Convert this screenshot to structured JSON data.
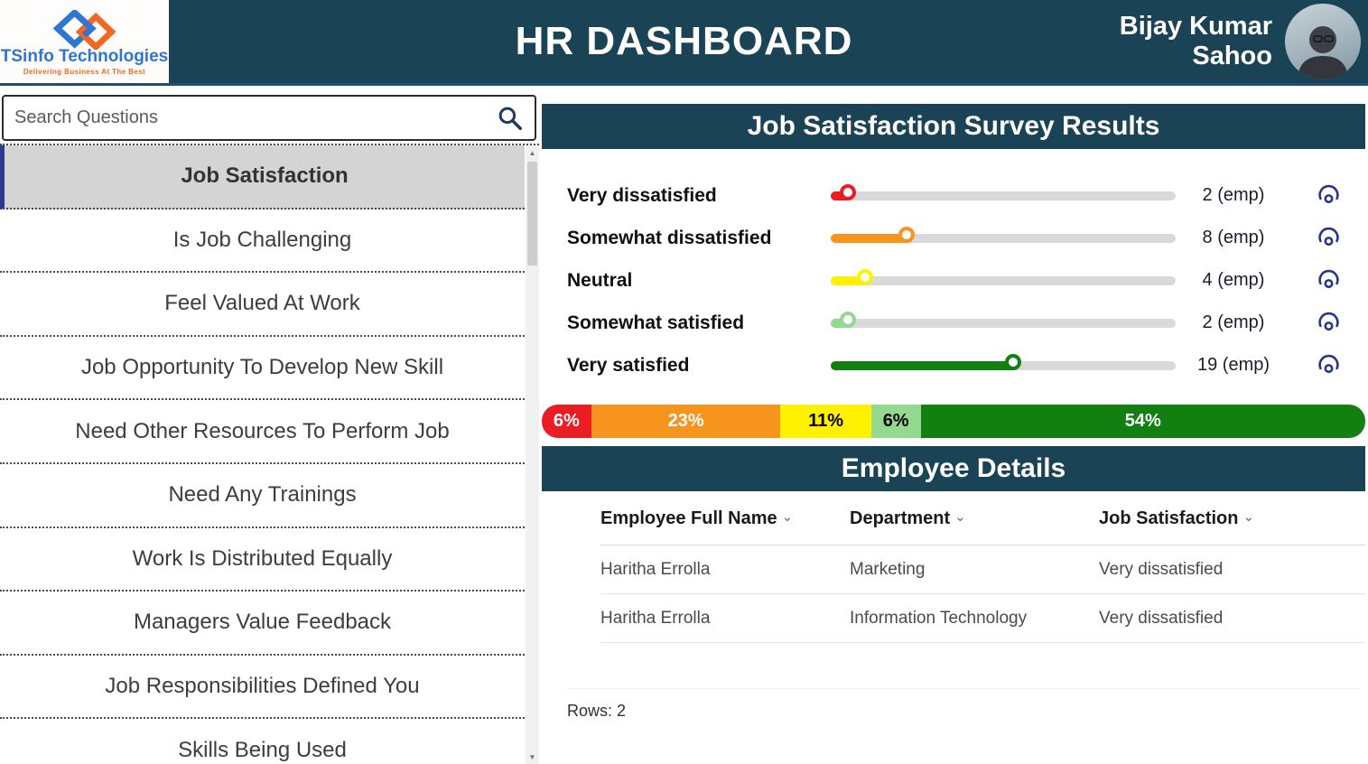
{
  "header": {
    "logo": {
      "company": "TSinfo Technologies",
      "tagline": "Delivering Business At The Best"
    },
    "title": "HR DASHBOARD",
    "user_name": "Bijay Kumar Sahoo"
  },
  "sidebar": {
    "search_placeholder": "Search Questions",
    "items": [
      {
        "label": "Job Satisfaction",
        "selected": true
      },
      {
        "label": "Is Job Challenging",
        "selected": false
      },
      {
        "label": "Feel Valued At Work",
        "selected": false
      },
      {
        "label": "Job Opportunity To Develop New Skill",
        "selected": false
      },
      {
        "label": "Need Other Resources To Perform Job",
        "selected": false
      },
      {
        "label": "Need Any Trainings",
        "selected": false
      },
      {
        "label": "Work Is Distributed Equally",
        "selected": false
      },
      {
        "label": "Managers Value Feedback",
        "selected": false
      },
      {
        "label": "Job Responsibilities Defined You",
        "selected": false
      },
      {
        "label": "Skills Being Used",
        "selected": false
      }
    ]
  },
  "survey": {
    "title": "Job Satisfaction Survey Results",
    "rows": [
      {
        "label": "Very dissatisfied",
        "value_label": "2 (emp)",
        "employees": 2,
        "percent": 6,
        "color": "#ec1c24"
      },
      {
        "label": "Somewhat dissatisfied",
        "value_label": "8 (emp)",
        "employees": 8,
        "percent": 23,
        "color": "#f7941d"
      },
      {
        "label": "Neutral",
        "value_label": "4 (emp)",
        "employees": 4,
        "percent": 11,
        "color": "#fff100"
      },
      {
        "label": "Somewhat satisfied",
        "value_label": "2 (emp)",
        "employees": 2,
        "percent": 6,
        "color": "#93d990"
      },
      {
        "label": "Very satisfied",
        "value_label": "19 (emp)",
        "employees": 19,
        "percent": 54,
        "color": "#118011"
      }
    ]
  },
  "distribution_bar": {
    "segments": [
      {
        "label": "6%",
        "percent": 6,
        "color": "#ec1c24",
        "text_color": "#ffffff"
      },
      {
        "label": "23%",
        "percent": 23,
        "color": "#f7941d",
        "text_color": "#ffffff"
      },
      {
        "label": "11%",
        "percent": 11,
        "color": "#fff100",
        "text_color": "#000000"
      },
      {
        "label": "6%",
        "percent": 6,
        "color": "#93d990",
        "text_color": "#000000"
      },
      {
        "label": "54%",
        "percent": 54,
        "color": "#118011",
        "text_color": "#ffffff"
      }
    ]
  },
  "employee_details": {
    "title": "Employee Details",
    "columns": [
      "Employee Full Name",
      "Department",
      "Job Satisfaction"
    ],
    "rows": [
      [
        "Haritha Errolla",
        "Marketing",
        "Very dissatisfied"
      ],
      [
        "Haritha Errolla",
        "Information Technology",
        "Very dissatisfied"
      ]
    ],
    "rows_label": "Rows: 2"
  },
  "icons": {
    "sort_indicator": "⌄",
    "scroll_up": "▲",
    "scroll_down": "▼"
  },
  "colors": {
    "header_bg": "#1b4356",
    "header_underline": "#1f4e79",
    "accent_navy": "#26358c",
    "selected_item_bg": "#d4d4d4",
    "slider_track": "#d9d9d9"
  }
}
